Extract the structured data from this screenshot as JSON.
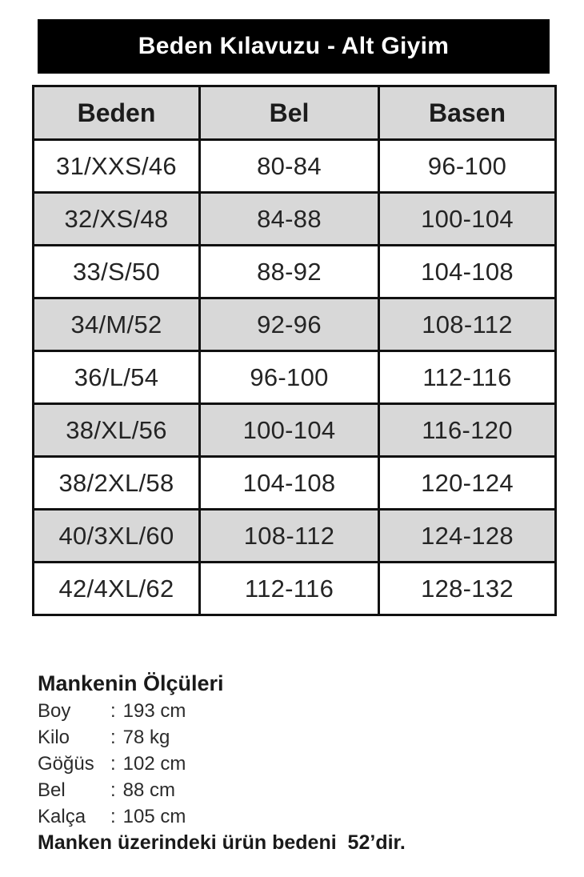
{
  "title": "Beden Kılavuzu - Alt Giyim",
  "table": {
    "headers": [
      "Beden",
      "Bel",
      "Basen"
    ],
    "rows": [
      [
        "31/XXS/46",
        "80-84",
        "96-100"
      ],
      [
        "32/XS/48",
        "84-88",
        "100-104"
      ],
      [
        "33/S/50",
        "88-92",
        "104-108"
      ],
      [
        "34/M/52",
        "92-96",
        "108-112"
      ],
      [
        "36/L/54",
        "96-100",
        "112-116"
      ],
      [
        "38/XL/56",
        "100-104",
        "116-120"
      ],
      [
        "38/2XL/58",
        "104-108",
        "120-124"
      ],
      [
        "40/3XL/60",
        "108-112",
        "124-128"
      ],
      [
        "42/4XL/62",
        "112-116",
        "128-132"
      ]
    ]
  },
  "model_info": {
    "heading": "Mankenin Ölçüleri",
    "separator": ":",
    "measurements": [
      {
        "label": "Boy",
        "value": "193 cm"
      },
      {
        "label": "Kilo",
        "value": "78 kg"
      },
      {
        "label": "Göğüs",
        "value": "102 cm"
      },
      {
        "label": "Bel",
        "value": "88 cm"
      },
      {
        "label": "Kalça",
        "value": "105 cm"
      }
    ],
    "note": "Manken üzerindeki ürün bedeni  52’dir."
  },
  "colors": {
    "banner_bg": "#000000",
    "banner_text": "#ffffff",
    "row_alt_bg": "#d8d8d8",
    "row_bg": "#ffffff",
    "border": "#111111",
    "text": "#242424"
  }
}
